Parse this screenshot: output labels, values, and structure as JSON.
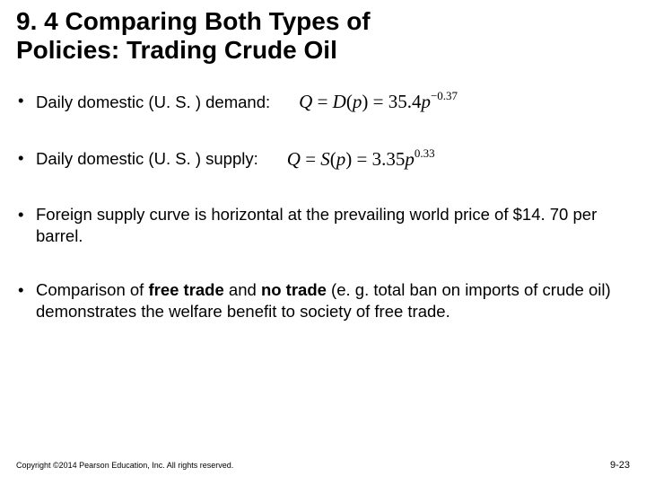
{
  "title_line1": "9. 4  Comparing Both Types of",
  "title_line2": "Policies: Trading Crude Oil",
  "bullets": {
    "b1_text": "Daily domestic (U. S. ) demand:",
    "b2_text": "Daily domestic (U. S. ) supply:",
    "b3_text": "Foreign supply curve is horizontal at the prevailing world price of $14. 70 per barrel.",
    "b4_pre": "Comparison of ",
    "b4_bold1": "free trade",
    "b4_mid": " and ",
    "b4_bold2": "no trade",
    "b4_post": " (e. g. total ban on imports of crude oil) demonstrates the welfare benefit to society of free trade."
  },
  "equations": {
    "demand": {
      "lhs1": "Q",
      "eq": " = ",
      "fn": "D",
      "lp": "(",
      "arg": "p",
      "rp": ") = ",
      "coef": "35.4",
      "base": "p",
      "exp": "−0.37"
    },
    "supply": {
      "lhs1": "Q",
      "eq": " = ",
      "fn": "S",
      "lp": "(",
      "arg": "p",
      "rp": ") = ",
      "coef": "3.35",
      "base": "p",
      "exp": "0.33"
    }
  },
  "footer": {
    "copyright": "Copyright ©2014 Pearson Education, Inc. All rights reserved.",
    "page": "9-23"
  },
  "colors": {
    "text": "#000000",
    "background": "#ffffff"
  },
  "typography": {
    "title_fontsize": 28,
    "body_fontsize": 18.5,
    "eq_fontsize": 21,
    "footer_fontsize": 9
  }
}
